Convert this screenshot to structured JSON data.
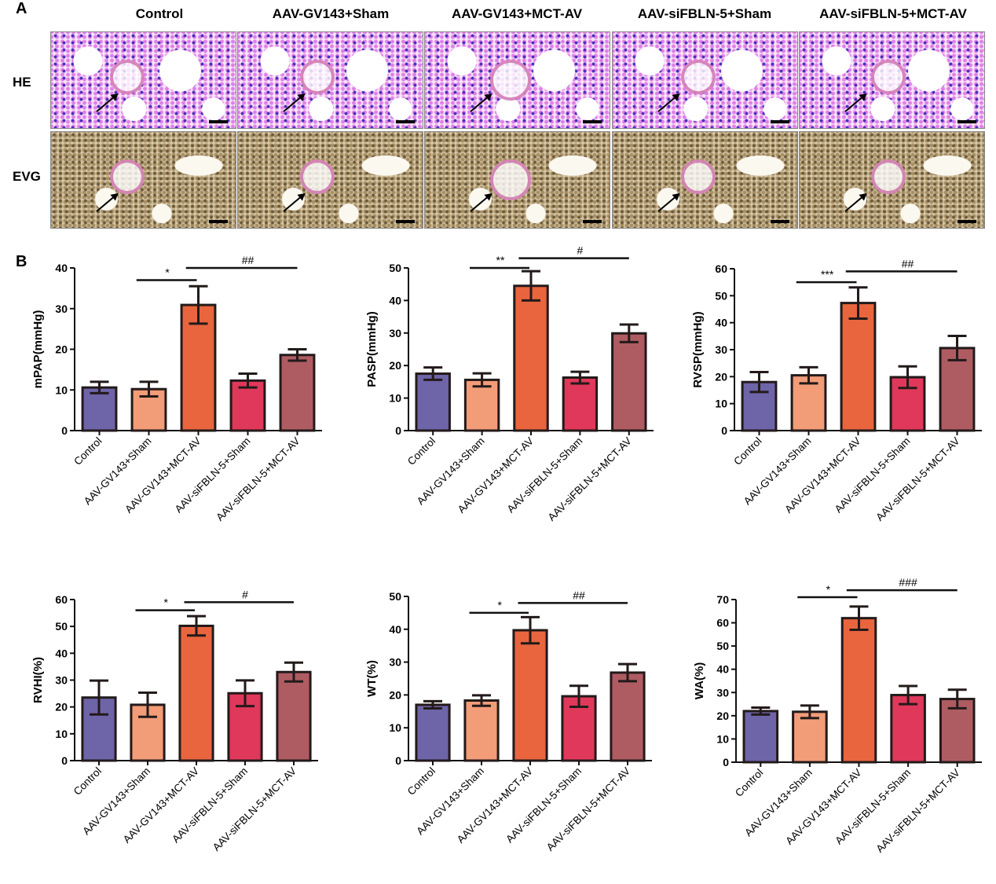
{
  "panel_a": {
    "label": "A",
    "columns": [
      "Control",
      "AAV-GV143+Sham",
      "AAV-GV143+MCT-AV",
      "AAV-siFBLN-5+Sham",
      "AAV-siFBLN-5+MCT-AV"
    ],
    "rows": [
      "HE",
      "EVG"
    ]
  },
  "panel_b": {
    "label": "B"
  },
  "chart_data": [
    {
      "type": "bar",
      "ylabel": "mPAP(mmHg)",
      "ylim": [
        0,
        40
      ],
      "yticks": [
        0,
        10,
        20,
        30,
        40
      ],
      "categories": [
        "Control",
        "AAV-GV143+Sham",
        "AAV-GV143+MCT-AV",
        "AAV-siFBLN-5+Sham",
        "AAV-siFBLN-5+MCT-AV"
      ],
      "values": [
        10.6,
        10.2,
        30.9,
        12.3,
        18.6
      ],
      "errors": [
        1.4,
        1.8,
        4.6,
        1.7,
        1.4
      ],
      "annotations": [
        {
          "text": "*",
          "from": 1,
          "to": 2,
          "y": 37
        },
        {
          "text": "##",
          "from": 2,
          "to": 4,
          "y": 40
        }
      ]
    },
    {
      "type": "bar",
      "ylabel": "PASP(mmHg)",
      "ylim": [
        0,
        50
      ],
      "yticks": [
        0,
        10,
        20,
        30,
        40,
        50
      ],
      "categories": [
        "Control",
        "AAV-GV143+Sham",
        "AAV-GV143+MCT-AV",
        "AAV-siFBLN-5+Sham",
        "AAV-siFBLN-5+MCT-AV"
      ],
      "values": [
        17.5,
        15.6,
        44.5,
        16.3,
        29.9
      ],
      "errors": [
        1.9,
        2.0,
        4.5,
        1.8,
        2.7
      ],
      "annotations": [
        {
          "text": "**",
          "from": 1,
          "to": 2,
          "y": 50
        },
        {
          "text": "#",
          "from": 2,
          "to": 4,
          "y": 53
        }
      ]
    },
    {
      "type": "bar",
      "ylabel": "RVSP(mmHg)",
      "ylim": [
        0,
        60
      ],
      "yticks": [
        0,
        10,
        20,
        30,
        40,
        50,
        60
      ],
      "categories": [
        "Control",
        "AAV-GV143+Sham",
        "AAV-GV143+MCT-AV",
        "AAV-siFBLN-5+Sham",
        "AAV-siFBLN-5+MCT-AV"
      ],
      "values": [
        18.0,
        20.5,
        47.3,
        19.8,
        30.6
      ],
      "errors": [
        3.7,
        3.0,
        5.8,
        4.0,
        4.5
      ],
      "annotations": [
        {
          "text": "***",
          "from": 1,
          "to": 2,
          "y": 55
        },
        {
          "text": "##",
          "from": 2,
          "to": 4,
          "y": 59
        }
      ]
    },
    {
      "type": "bar",
      "ylabel": "RVHI(%)",
      "ylim": [
        0,
        60
      ],
      "yticks": [
        0,
        10,
        20,
        30,
        40,
        50,
        60
      ],
      "categories": [
        "Control",
        "AAV-GV143+Sham",
        "AAV-GV143+MCT-AV",
        "AAV-siFBLN-5+Sham",
        "AAV-siFBLN-5+MCT-AV"
      ],
      "values": [
        23.5,
        20.8,
        50.2,
        25.1,
        33.0
      ],
      "errors": [
        6.3,
        4.5,
        3.6,
        4.8,
        3.5
      ],
      "annotations": [
        {
          "text": "*",
          "from": 1,
          "to": 2,
          "y": 56
        },
        {
          "text": "#",
          "from": 2,
          "to": 4,
          "y": 59
        }
      ]
    },
    {
      "type": "bar",
      "ylabel": "WT(%)",
      "ylim": [
        0,
        50
      ],
      "yticks": [
        0,
        10,
        20,
        30,
        40,
        50
      ],
      "categories": [
        "Control",
        "AAV-GV143+Sham",
        "AAV-GV143+MCT-AV",
        "AAV-siFBLN-5+Sham",
        "AAV-siFBLN-5+MCT-AV"
      ],
      "values": [
        17.0,
        18.3,
        39.7,
        19.6,
        26.8
      ],
      "errors": [
        1.1,
        1.6,
        4.0,
        3.2,
        2.6
      ],
      "annotations": [
        {
          "text": "*",
          "from": 1,
          "to": 2,
          "y": 45
        },
        {
          "text": "##",
          "from": 2,
          "to": 4,
          "y": 48
        }
      ]
    },
    {
      "type": "bar",
      "ylabel": "WA(%)",
      "ylim": [
        0,
        70
      ],
      "yticks": [
        0,
        10,
        20,
        30,
        40,
        50,
        60,
        70
      ],
      "categories": [
        "Control",
        "AAV-GV143+Sham",
        "AAV-GV143+MCT-AV",
        "AAV-siFBLN-5+Sham",
        "AAV-siFBLN-5+MCT-AV"
      ],
      "values": [
        22.0,
        21.7,
        62.0,
        28.9,
        27.2
      ],
      "errors": [
        1.5,
        2.7,
        5.0,
        3.9,
        4.0
      ],
      "annotations": [
        {
          "text": "*",
          "from": 1,
          "to": 2,
          "y": 71
        },
        {
          "text": "###",
          "from": 2,
          "to": 4,
          "y": 74
        }
      ]
    }
  ],
  "colors": [
    "#6e64a8",
    "#f29c78",
    "#e8653e",
    "#e0385a",
    "#ae5c62"
  ]
}
